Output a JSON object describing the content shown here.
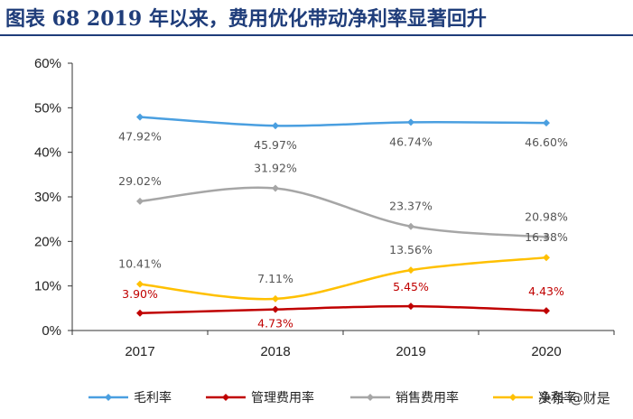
{
  "title": "图表 68   2019 年以来，费用优化带动净利率显著回升",
  "watermark": "头条 @财是",
  "chart_data": {
    "type": "line",
    "categories": [
      "2017",
      "2018",
      "2019",
      "2020"
    ],
    "ylim": [
      0,
      60
    ],
    "yticks": [
      "0%",
      "10%",
      "20%",
      "30%",
      "40%",
      "50%",
      "60%"
    ],
    "grid": false,
    "legend_position": "bottom",
    "series": [
      {
        "name": "毛利率",
        "values": [
          47.92,
          45.97,
          46.74,
          46.6
        ],
        "labels": [
          "47.92%",
          "45.97%",
          "46.74%",
          "46.60%"
        ],
        "color": "#4a9fe0",
        "label_color": "#555555"
      },
      {
        "name": "管理费用率",
        "values": [
          3.9,
          4.73,
          5.45,
          4.43
        ],
        "labels": [
          "3.90%",
          "4.73%",
          "5.45%",
          "4.43%"
        ],
        "color": "#c00000",
        "label_color": "#c00000"
      },
      {
        "name": "销售费用率",
        "values": [
          29.02,
          31.92,
          23.37,
          20.98
        ],
        "labels": [
          "29.02%",
          "31.92%",
          "23.37%",
          "20.98%"
        ],
        "color": "#a6a6a6",
        "label_color": "#555555"
      },
      {
        "name": "净利率",
        "values": [
          10.41,
          7.11,
          13.56,
          16.38
        ],
        "labels": [
          "10.41%",
          "7.11%",
          "13.56%",
          "16.38%"
        ],
        "color": "#ffc000",
        "label_color": "#555555"
      }
    ]
  }
}
